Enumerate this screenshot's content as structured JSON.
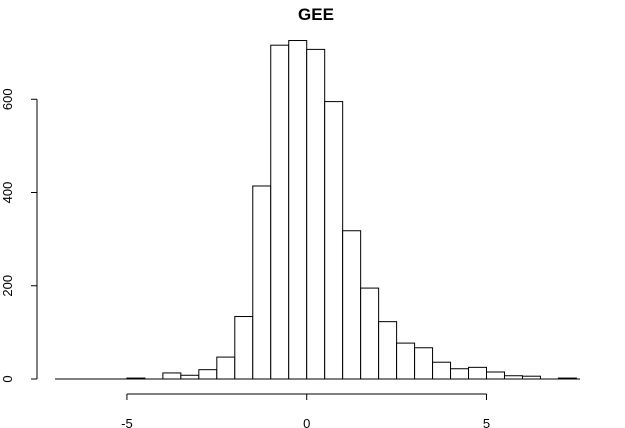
{
  "chart_data": {
    "type": "bar",
    "title": "GEE",
    "xlabel": "",
    "ylabel": "",
    "xlim": [
      -7.0,
      7.6
    ],
    "ylim": [
      0,
      740
    ],
    "x_ticks": [
      -5,
      0,
      5
    ],
    "y_ticks": [
      0,
      200,
      400,
      600
    ],
    "bin_width": 0.5,
    "bins": [
      {
        "x0": -5.0,
        "count": 2
      },
      {
        "x0": -4.5,
        "count": 0
      },
      {
        "x0": -4.0,
        "count": 13
      },
      {
        "x0": -3.5,
        "count": 8
      },
      {
        "x0": -3.0,
        "count": 20
      },
      {
        "x0": -2.5,
        "count": 47
      },
      {
        "x0": -2.0,
        "count": 134
      },
      {
        "x0": -1.5,
        "count": 414
      },
      {
        "x0": -1.0,
        "count": 716
      },
      {
        "x0": -0.5,
        "count": 726
      },
      {
        "x0": 0.0,
        "count": 707
      },
      {
        "x0": 0.5,
        "count": 595
      },
      {
        "x0": 1.0,
        "count": 318
      },
      {
        "x0": 1.5,
        "count": 195
      },
      {
        "x0": 2.0,
        "count": 123
      },
      {
        "x0": 2.5,
        "count": 77
      },
      {
        "x0": 3.0,
        "count": 67
      },
      {
        "x0": 3.5,
        "count": 36
      },
      {
        "x0": 4.0,
        "count": 22
      },
      {
        "x0": 4.5,
        "count": 25
      },
      {
        "x0": 5.0,
        "count": 15
      },
      {
        "x0": 5.5,
        "count": 7
      },
      {
        "x0": 6.0,
        "count": 6
      },
      {
        "x0": 6.5,
        "count": 0
      },
      {
        "x0": 7.0,
        "count": 2
      }
    ],
    "grid": false,
    "legend": "none"
  }
}
